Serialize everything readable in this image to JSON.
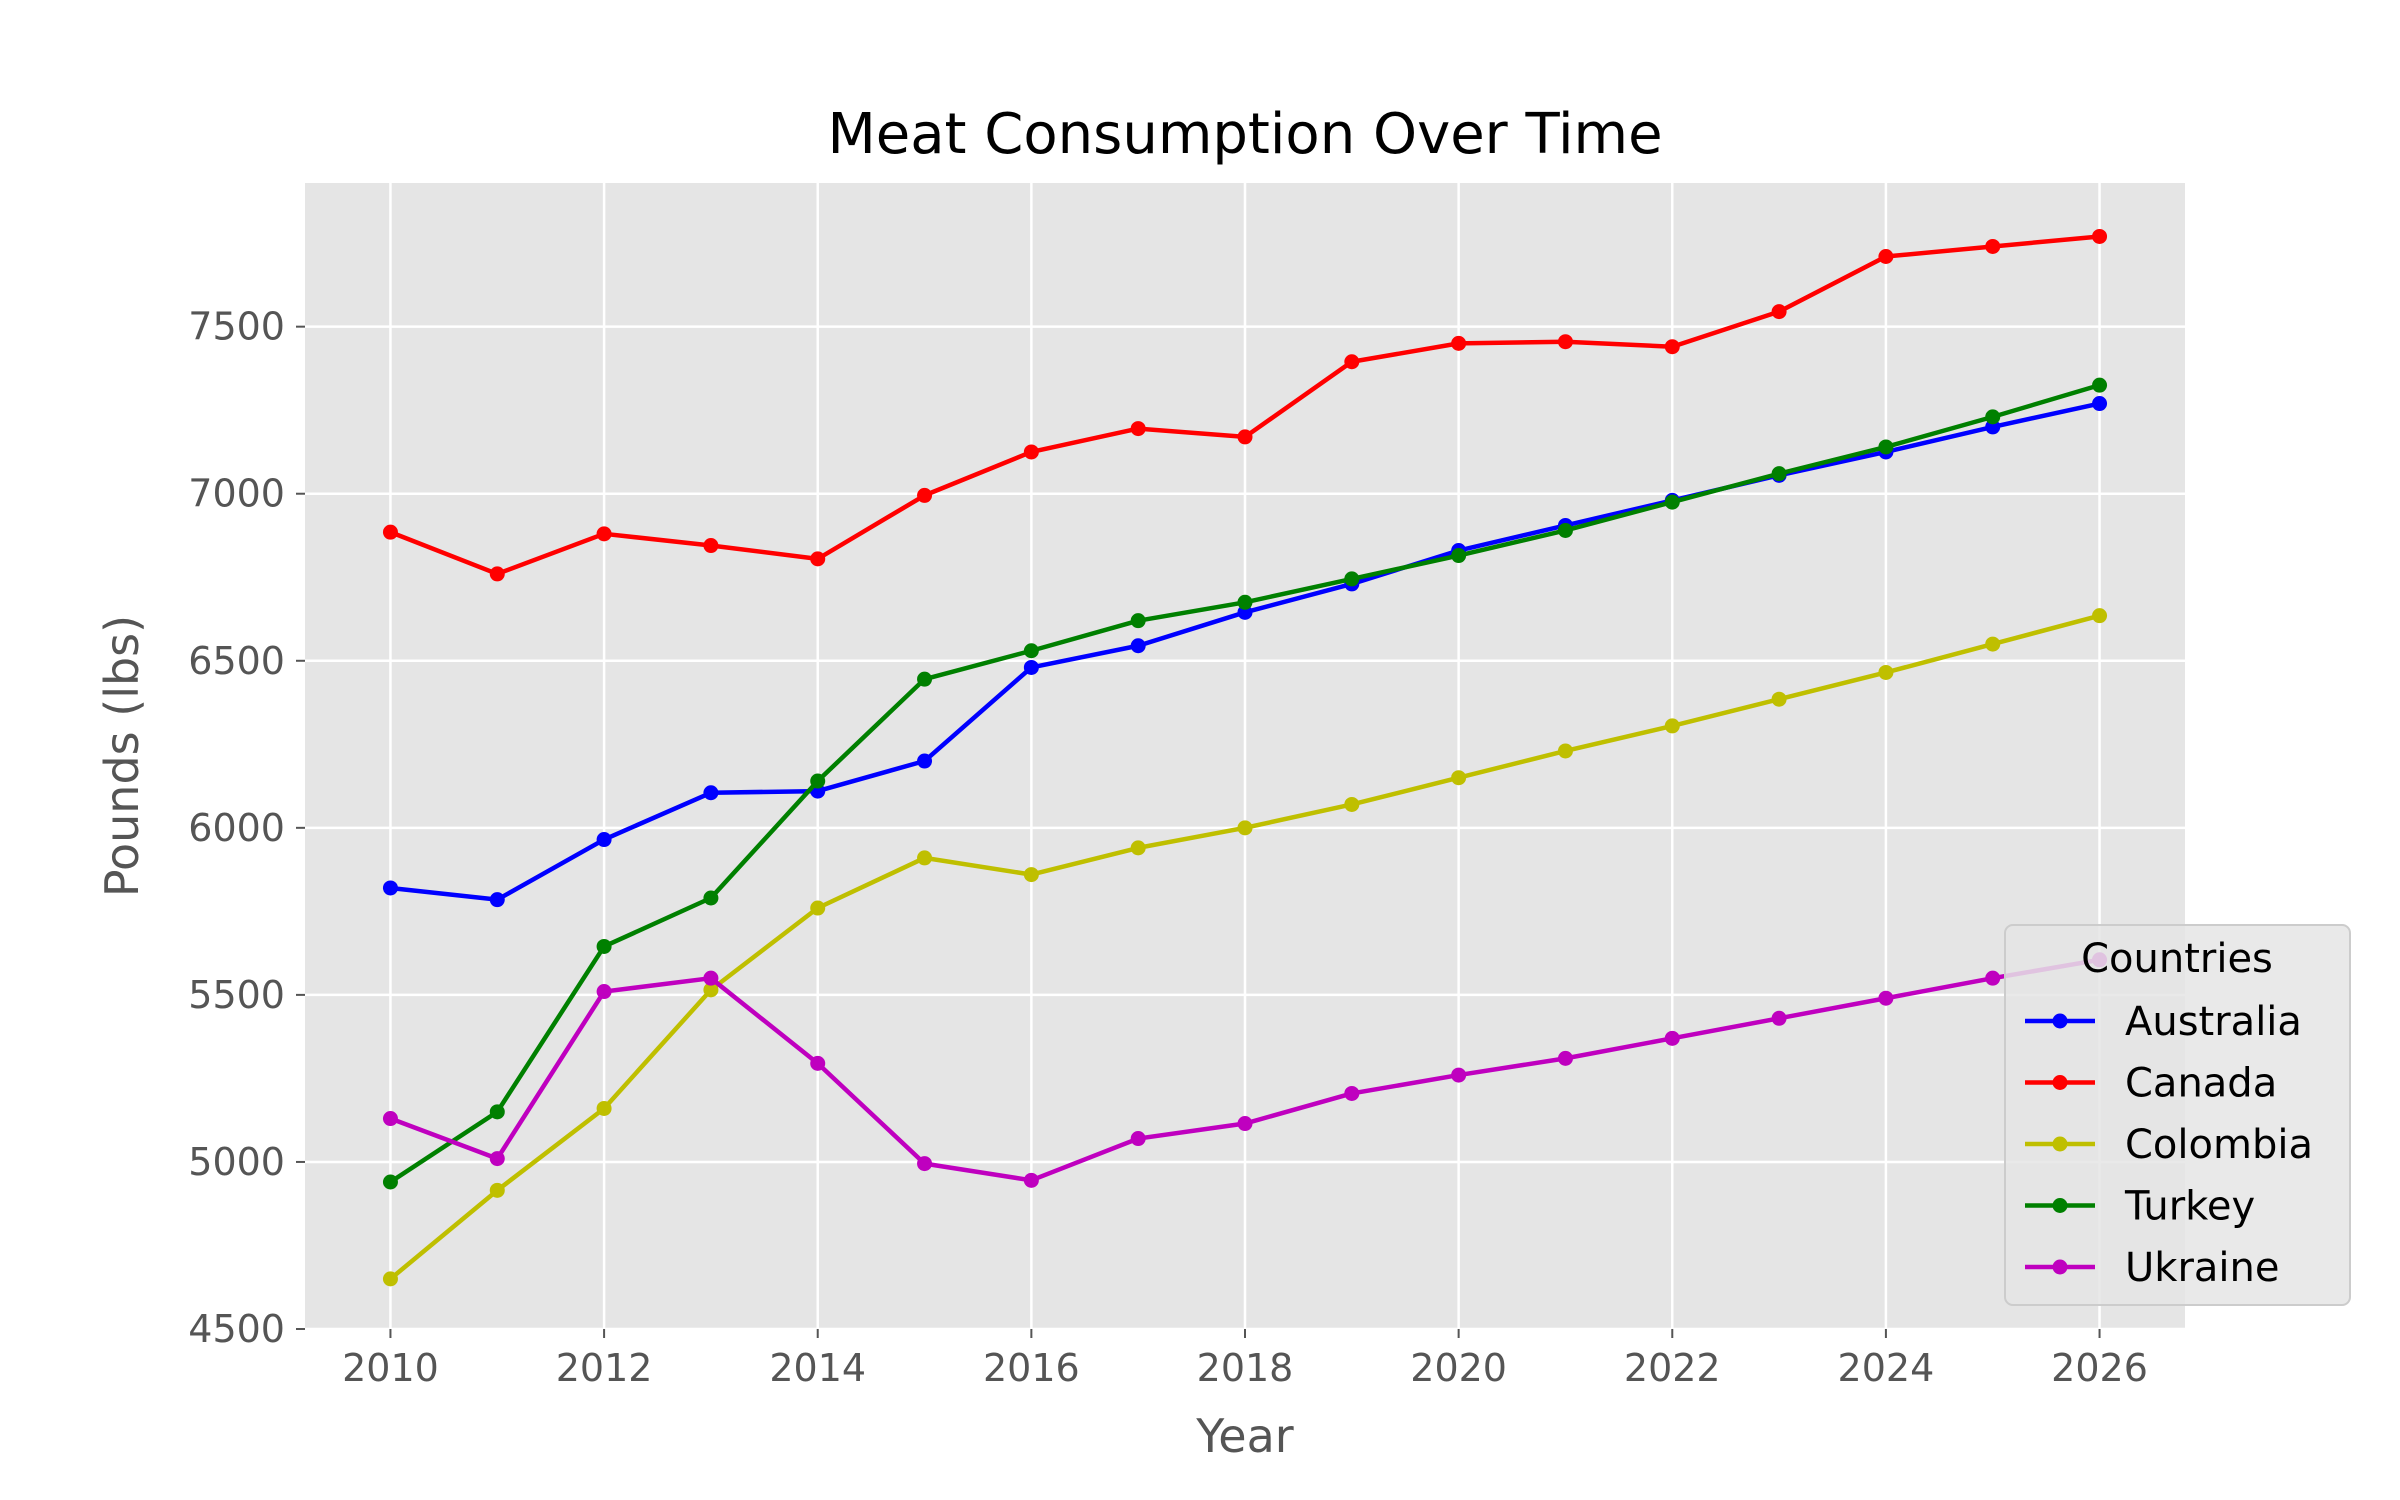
{
  "chart_data": {
    "type": "line",
    "title": "Meat Consumption Over Time",
    "xlabel": "Year",
    "ylabel": "Pounds (lbs)",
    "x": [
      2010,
      2011,
      2012,
      2013,
      2014,
      2015,
      2016,
      2017,
      2018,
      2019,
      2020,
      2021,
      2022,
      2023,
      2024,
      2025,
      2026
    ],
    "xlim": [
      2009.2,
      2026.8
    ],
    "ylim": [
      4500,
      7930
    ],
    "xticks": [
      "2010",
      "2012",
      "2014",
      "2016",
      "2018",
      "2020",
      "2022",
      "2024",
      "2026"
    ],
    "yticks": [
      "4500",
      "5000",
      "5500",
      "6000",
      "6500",
      "7000",
      "7500"
    ],
    "grid": true,
    "legend": {
      "title": "Countries",
      "placement": "lower-right"
    },
    "series": [
      {
        "name": "Australia",
        "color": "#0000ff",
        "values": [
          5820,
          5785,
          5965,
          6105,
          6110,
          6200,
          6480,
          6545,
          6645,
          6730,
          6830,
          6905,
          6980,
          7055,
          7125,
          7200,
          7270
        ]
      },
      {
        "name": "Canada",
        "color": "#ff0000",
        "values": [
          6885,
          6760,
          6880,
          6845,
          6805,
          6995,
          7125,
          7195,
          7170,
          7395,
          7450,
          7455,
          7440,
          7545,
          7710,
          7740,
          7770
        ]
      },
      {
        "name": "Colombia",
        "color": "#bfbf00",
        "values": [
          4650,
          4915,
          5160,
          5515,
          5760,
          5910,
          5860,
          5940,
          6000,
          6070,
          6150,
          6230,
          6305,
          6385,
          6465,
          6550,
          6635
        ]
      },
      {
        "name": "Turkey",
        "color": "#008000",
        "values": [
          4940,
          5150,
          5645,
          5790,
          6140,
          6445,
          6530,
          6620,
          6675,
          6745,
          6815,
          6890,
          6975,
          7060,
          7140,
          7230,
          7325
        ]
      },
      {
        "name": "Ukraine",
        "color": "#bf00bf",
        "values": [
          5130,
          5010,
          5510,
          5550,
          5295,
          4995,
          4945,
          5070,
          5115,
          5205,
          5260,
          5310,
          5370,
          5430,
          5490,
          5550,
          5605
        ]
      }
    ]
  }
}
